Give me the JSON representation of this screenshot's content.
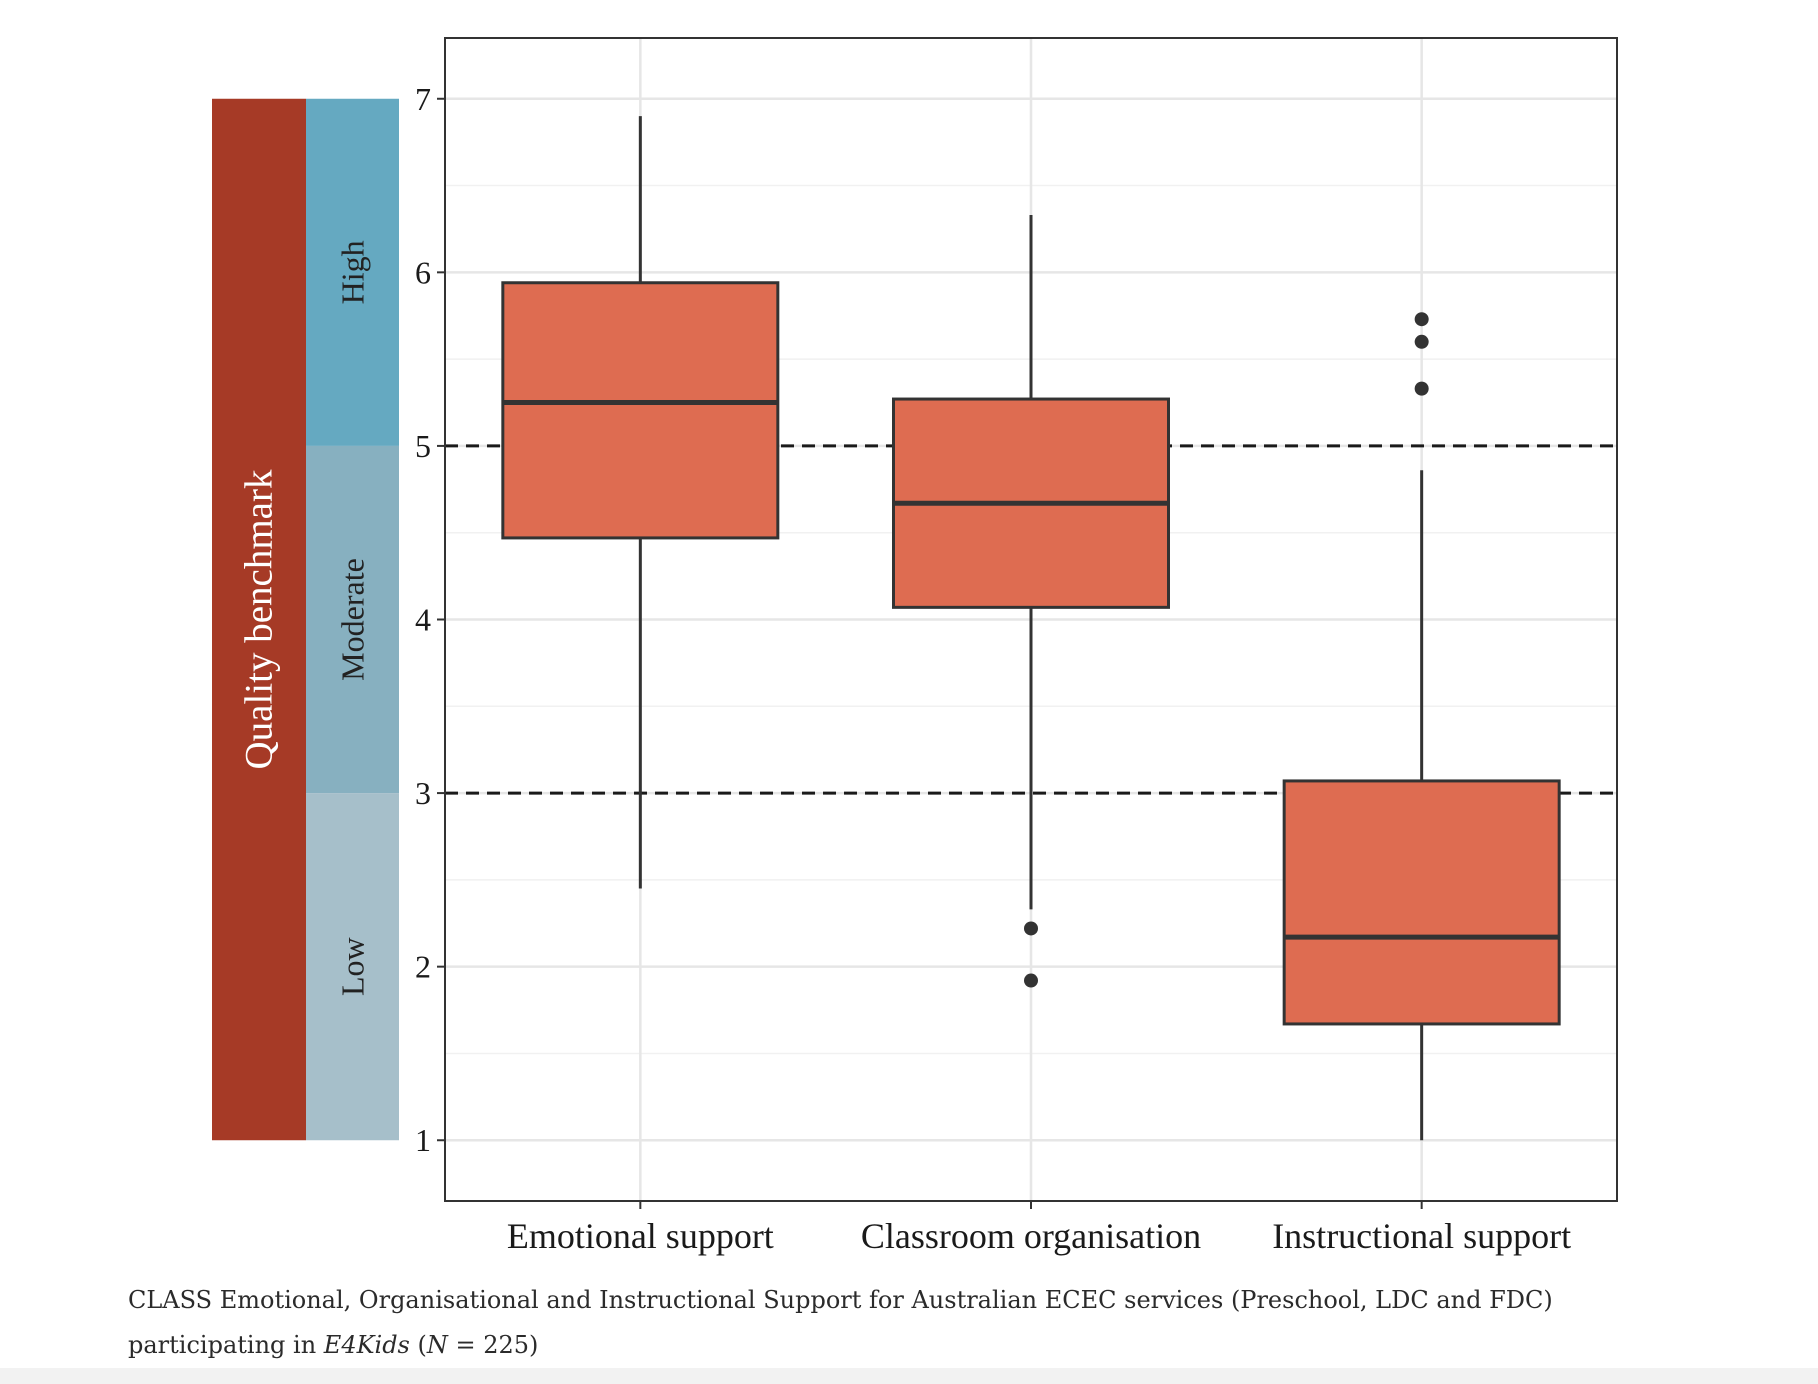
{
  "chart_data": {
    "type": "box",
    "categories": [
      "Emotional support",
      "Classroom organisation",
      "Instructional support"
    ],
    "series": [
      {
        "name": "Emotional support",
        "min": 2.45,
        "q1": 4.47,
        "median": 5.25,
        "q3": 5.94,
        "max": 6.9,
        "outliers": []
      },
      {
        "name": "Classroom organisation",
        "min": 2.33,
        "q1": 4.07,
        "median": 4.67,
        "q3": 5.27,
        "max": 6.33,
        "outliers": [
          2.22,
          1.92
        ]
      },
      {
        "name": "Instructional support",
        "min": 1.0,
        "q1": 1.67,
        "median": 2.17,
        "q3": 3.07,
        "max": 4.86,
        "outliers": [
          5.73,
          5.6,
          5.33
        ]
      }
    ],
    "ylim": [
      0.65,
      7.35
    ],
    "yticks": [
      1,
      2,
      3,
      4,
      5,
      6,
      7
    ],
    "ytick_labels": [
      "1",
      "2",
      "3",
      "4",
      "5",
      "6",
      "7"
    ],
    "thresholds": [
      3,
      5
    ],
    "grid": true,
    "benchmark": {
      "title": "Quality benchmark",
      "bands": [
        {
          "label": "High",
          "from": 5,
          "to": 7,
          "color": "#65a9c1"
        },
        {
          "label": "Moderate",
          "from": 3,
          "to": 5,
          "color": "#87b0c0"
        },
        {
          "label": "Low",
          "from": 1,
          "to": 3,
          "color": "#a6bfca"
        }
      ],
      "title_color": "#a63a26"
    },
    "box_color": "#de6c51",
    "line_color": "#333333"
  },
  "caption": {
    "text": "CLASS Emotional, Organisational and Instructional Support for Australian ECEC services (Preschool, LDC and FDC) participating in ",
    "italic_study": "E4Kids",
    "n_open": " (",
    "n_symbol": "N",
    "n_value": " = 225)"
  }
}
